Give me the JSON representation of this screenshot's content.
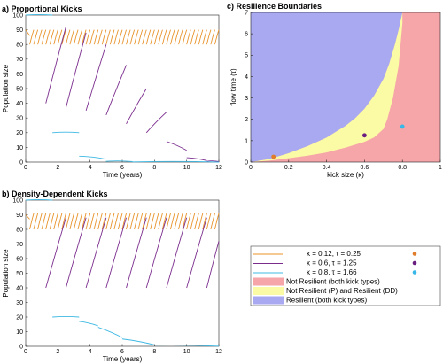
{
  "colors": {
    "orange": "#E8932A",
    "purple": "#7B2D8E",
    "cyan": "#3FB9E3",
    "red_region": "#F6A6A8",
    "yellow_region": "#FBFBA6",
    "blue_region": "#A9A9F2",
    "orange_dot": "#E07C2A",
    "purple_dot": "#6A1F80",
    "cyan_dot": "#37B8E8"
  },
  "chart_data": [
    {
      "type": "line",
      "title": "a) Proportional Kicks",
      "xlabel": "Time (years)",
      "ylabel": "Population size",
      "xlim": [
        0,
        12
      ],
      "ylim": [
        0,
        100
      ],
      "xticks": [
        "0",
        "2",
        "4",
        "6",
        "8",
        "10",
        "12"
      ],
      "yticks": [
        "0",
        "10",
        "20",
        "30",
        "40",
        "50",
        "60",
        "70",
        "80",
        "90",
        "100"
      ],
      "series": [
        {
          "color": "orange",
          "kick_interval": 0.25,
          "kick_fraction": 0.12,
          "start": {
            "x": 0.0,
            "y": 90
          },
          "segments": [
            {
              "x0": 0.25,
              "y0": 80,
              "x1": 0.5,
              "y1": 90
            },
            {
              "x0": 0.5,
              "y0": 80,
              "x1": 0.75,
              "y1": 90
            },
            {
              "x0": 11.75,
              "y0": 80,
              "x1": 12.0,
              "y1": 90
            }
          ]
        },
        {
          "color": "purple",
          "segments": [
            {
              "x0": 1.25,
              "y0": 40,
              "x1": 2.5,
              "y1": 92
            },
            {
              "x0": 2.5,
              "y0": 37,
              "x1": 3.75,
              "y1": 88
            },
            {
              "x0": 3.75,
              "y0": 35,
              "x1": 5.0,
              "y1": 80
            },
            {
              "x0": 5.0,
              "y0": 32,
              "x1": 6.25,
              "y1": 66
            },
            {
              "x0": 6.25,
              "y0": 26,
              "x1": 7.5,
              "y1": 50
            },
            {
              "x0": 7.5,
              "y0": 20,
              "x1": 8.75,
              "y1": 34
            },
            {
              "x0": 8.75,
              "y0": 14,
              "x1": 10.0,
              "y1": 8
            },
            {
              "x0": 10.0,
              "y0": 3,
              "x1": 11.25,
              "y1": 1
            },
            {
              "x0": 11.25,
              "y0": 0.5,
              "x1": 12.0,
              "y1": 0.3
            }
          ]
        },
        {
          "color": "cyan",
          "segments": [
            {
              "x0": 0.0,
              "y0": 100,
              "x1": 1.66,
              "y1": 100
            },
            {
              "x0": 1.66,
              "y0": 20,
              "x1": 3.32,
              "y1": 20
            },
            {
              "x0": 3.32,
              "y0": 4,
              "x1": 4.98,
              "y1": 2
            },
            {
              "x0": 4.98,
              "y0": 0.5,
              "x1": 6.64,
              "y1": 0.3
            },
            {
              "x0": 6.64,
              "y0": 0.1,
              "x1": 12.0,
              "y1": 0
            }
          ]
        }
      ]
    },
    {
      "type": "line",
      "title": "b) Density-Dependent Kicks",
      "xlabel": "Time (years)",
      "ylabel": "Population size",
      "xlim": [
        0,
        12
      ],
      "ylim": [
        0,
        100
      ],
      "xticks": [
        "0",
        "2",
        "4",
        "6",
        "8",
        "10",
        "12"
      ],
      "yticks": [
        "0",
        "10",
        "20",
        "30",
        "40",
        "50",
        "60",
        "70",
        "80",
        "90",
        "100"
      ],
      "series": [
        {
          "color": "orange",
          "kick_interval": 0.25,
          "start": {
            "x": 0.0,
            "y": 90
          },
          "segments": [
            {
              "x0": 0.25,
              "y0": 80,
              "x1": 0.5,
              "y1": 91
            },
            {
              "x0": 11.75,
              "y0": 80,
              "x1": 12.0,
              "y1": 91
            }
          ]
        },
        {
          "color": "purple",
          "segments": [
            {
              "x0": 1.25,
              "y0": 40,
              "x1": 2.5,
              "y1": 88
            },
            {
              "x0": 2.5,
              "y0": 40,
              "x1": 3.75,
              "y1": 88
            },
            {
              "x0": 3.75,
              "y0": 40,
              "x1": 5.0,
              "y1": 88
            },
            {
              "x0": 5.0,
              "y0": 40,
              "x1": 6.25,
              "y1": 88
            },
            {
              "x0": 6.25,
              "y0": 40,
              "x1": 7.5,
              "y1": 88
            },
            {
              "x0": 7.5,
              "y0": 40,
              "x1": 8.75,
              "y1": 88
            },
            {
              "x0": 8.75,
              "y0": 40,
              "x1": 10.0,
              "y1": 88
            },
            {
              "x0": 10.0,
              "y0": 40,
              "x1": 11.25,
              "y1": 88
            },
            {
              "x0": 11.25,
              "y0": 40,
              "x1": 12.0,
              "y1": 72
            }
          ]
        },
        {
          "color": "cyan",
          "segments": [
            {
              "x0": 0.0,
              "y0": 100,
              "x1": 1.66,
              "y1": 100
            },
            {
              "x0": 1.66,
              "y0": 20,
              "x1": 3.32,
              "y1": 20
            },
            {
              "x0": 3.32,
              "y0": 17,
              "x1": 4.5,
              "y1": 14
            },
            {
              "x0": 4.5,
              "y0": 13,
              "x1": 6.0,
              "y1": 6
            },
            {
              "x0": 6.0,
              "y0": 5,
              "x1": 8.0,
              "y1": 1
            },
            {
              "x0": 8.0,
              "y0": 0.8,
              "x1": 12.0,
              "y1": 0.1
            }
          ]
        }
      ]
    },
    {
      "type": "area",
      "title": "c) Resilience Boundaries",
      "xlabel": "kick  size  (κ)",
      "ylabel": "flow  time  (τ)",
      "xlim": [
        0,
        1
      ],
      "ylim": [
        0,
        7
      ],
      "xticks": [
        "0",
        "0.2",
        "0.4",
        "0.6",
        "0.8",
        "1"
      ],
      "yticks": [
        "0",
        "1",
        "2",
        "3",
        "4",
        "5",
        "6",
        "7"
      ],
      "boundary_red": {
        "x": [
          0,
          0.1,
          0.2,
          0.3,
          0.4,
          0.5,
          0.6,
          0.65,
          0.7,
          0.72,
          0.75,
          0.78,
          0.8
        ],
        "y": [
          0,
          0.07,
          0.18,
          0.3,
          0.45,
          0.68,
          0.95,
          1.15,
          1.55,
          2.0,
          3.0,
          4.5,
          6.5
        ]
      },
      "boundary_blue": {
        "x": [
          0,
          0.1,
          0.2,
          0.3,
          0.4,
          0.5,
          0.55,
          0.6,
          0.65,
          0.7,
          0.73,
          0.76,
          0.78,
          0.8
        ],
        "y": [
          0,
          0.15,
          0.42,
          0.75,
          1.15,
          1.7,
          2.05,
          2.5,
          3.1,
          3.9,
          4.6,
          5.5,
          6.2,
          7.0
        ]
      },
      "points": [
        {
          "x": 0.12,
          "y": 0.25,
          "color": "orange_dot"
        },
        {
          "x": 0.6,
          "y": 1.25,
          "color": "purple_dot"
        },
        {
          "x": 0.8,
          "y": 1.66,
          "color": "cyan_dot"
        }
      ]
    }
  ],
  "legend": [
    {
      "kind": "line",
      "color": "orange",
      "label": "κ = 0.12,  τ = 0.25",
      "dot": "orange_dot"
    },
    {
      "kind": "line",
      "color": "purple",
      "label": "κ = 0.6,  τ = 1.25",
      "dot": "purple_dot"
    },
    {
      "kind": "line",
      "color": "cyan",
      "label": "κ = 0.8,  τ = 1.66",
      "dot": "cyan_dot"
    },
    {
      "kind": "patch",
      "color": "red_region",
      "label": "Not Resilient (both kick types)"
    },
    {
      "kind": "patch",
      "color": "yellow_region",
      "label": "Not Resilient (P) and Resilient (DD)"
    },
    {
      "kind": "patch",
      "color": "blue_region",
      "label": "Resilient (both kick types)"
    }
  ]
}
